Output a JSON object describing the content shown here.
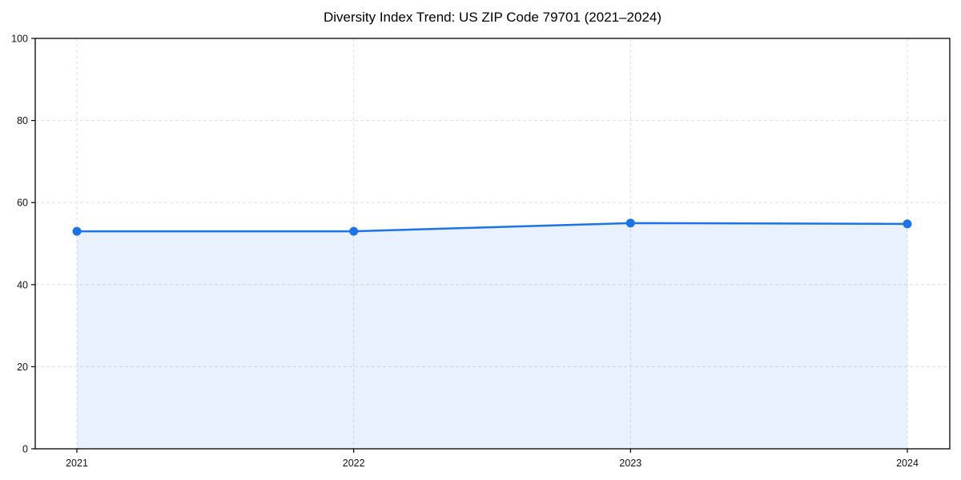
{
  "chart_data": {
    "type": "area",
    "title": "Diversity Index Trend: US ZIP Code 79701 (2021–2024)",
    "categories": [
      "2021",
      "2022",
      "2023",
      "2024"
    ],
    "series": [
      {
        "name": "Diversity Index",
        "values": [
          53.0,
          53.0,
          55.0,
          54.8
        ]
      }
    ],
    "xlabel": "",
    "ylabel": "",
    "ylim": [
      0,
      100
    ],
    "yticks": [
      0,
      20,
      40,
      60,
      80,
      100
    ],
    "grid": "dashed both axes",
    "legend_position": "none",
    "frame": "full box",
    "marker": "circle",
    "colors": {
      "line": "#1a73e8",
      "marker": "#1a73e8",
      "fill": "#1a73e8",
      "fill_opacity": 0.1,
      "grid": "#dedede",
      "axis": "#000000",
      "tick_text": "#111111",
      "background": "#ffffff"
    }
  }
}
